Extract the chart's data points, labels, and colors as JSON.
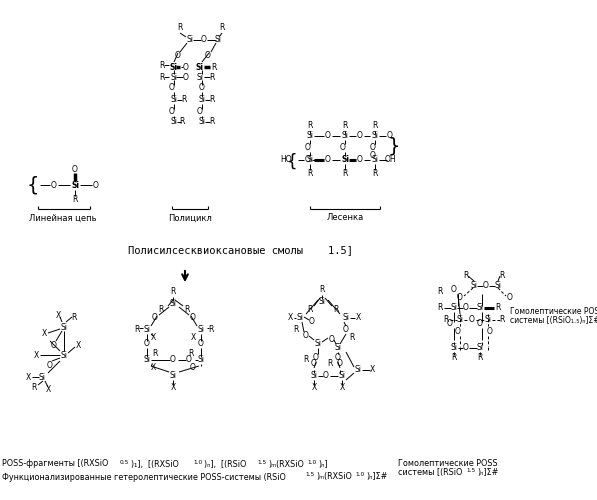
{
  "background_color": "#ffffff",
  "text_color": "#000000",
  "line_color": "#000000",
  "top_label": "Полисилсесквиоксановые смолы    1.5]",
  "linear_label": "Линейная цепь",
  "polycycle_label": "Полицикл",
  "ladder_label": "Лесенка",
  "homolep1": "Гомолептические POSS",
  "homolep2": "системы [(RSiO",
  "homolep3": ")ₙ]Σ#",
  "bl1a": "POSS-фрагменты [(RXSiO",
  "bl1b": ")₁],  [(RXSiO",
  "bl1c": ")ₙ],  [(RSiO",
  "bl1d": ")ₘ(RXSiO",
  "bl1e": ")ₙ]",
  "bl2a": "Функционализированные гетеролептические POSS-системы (RSiO",
  "bl2b": ")ₘ(RXSiO",
  "bl2c": ")ₙ]Σ#"
}
